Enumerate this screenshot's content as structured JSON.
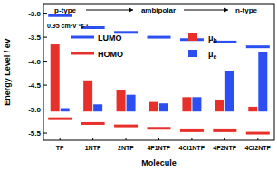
{
  "chart_data": {
    "type": "bar",
    "y_label": "Energy Level / eV",
    "x_label": "Molecule",
    "categories": [
      "TP",
      "1NTP",
      "2NTP",
      "4F1NTP",
      "4Cl1NTP",
      "4F2NTP",
      "4Cl2NTP"
    ],
    "ylim": [
      -5.65,
      -2.8
    ],
    "yticks": [
      {
        "value": -3,
        "label": "-3.0"
      },
      -3.5,
      {
        "value": -4,
        "label": "-4.0"
      },
      -4.5,
      {
        "value": -5,
        "label": "-5.0"
      },
      -5.5
    ],
    "bar_base": -5.05,
    "annotations": [
      "p-type",
      "ambipolar",
      "n-type",
      "0.95 cm²V⁻¹s⁻¹"
    ],
    "series": [
      {
        "name": "LUMO",
        "type": "scatter",
        "marker": "dash",
        "color": "#2b4ff2",
        "values": [
          -3.05,
          -3.3,
          -3.4,
          -3.5,
          -3.55,
          -3.6,
          -3.7
        ]
      },
      {
        "name": "HOMO",
        "type": "scatter",
        "marker": "dash",
        "color": "#e8302a",
        "values": [
          -5.2,
          -5.3,
          -5.35,
          -5.4,
          -5.45,
          -5.45,
          -5.5
        ]
      },
      {
        "name": "μh",
        "type": "bar",
        "color": "#e8302a",
        "values": [
          -3.65,
          -4.4,
          -4.6,
          -4.85,
          -4.75,
          -4.8,
          -4.95
        ]
      },
      {
        "name": "μe",
        "type": "bar",
        "color": "#2b4ff2",
        "values": [
          -4.98,
          -4.9,
          -4.7,
          -4.88,
          -4.75,
          -4.2,
          -3.8
        ]
      }
    ],
    "legend": "top"
  }
}
